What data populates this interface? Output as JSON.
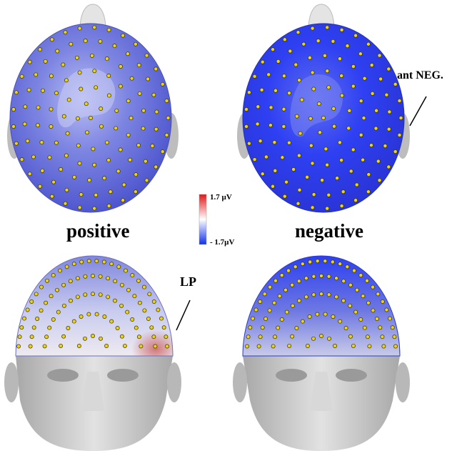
{
  "conditions": {
    "left": "positive",
    "right": "negative"
  },
  "annotations": {
    "right_top": "ant NEG.",
    "left_bottom": "LP"
  },
  "color_scale": {
    "max_label": "1.7 µV",
    "min_label": "- 1.7µV",
    "colors": {
      "positive_end": "#e01818",
      "midpoint": "#ffffff",
      "negative_end": "#1030f0"
    }
  },
  "views": [
    {
      "condition": "positive",
      "view": "top"
    },
    {
      "condition": "negative",
      "view": "top"
    },
    {
      "condition": "positive",
      "view": "front"
    },
    {
      "condition": "negative",
      "view": "front"
    }
  ],
  "colors": {
    "electrode": "#e8d21a",
    "head_positive_top": "#6b72d8",
    "head_negative_top": "#2d3ef0",
    "face": "#c8c8c8"
  }
}
